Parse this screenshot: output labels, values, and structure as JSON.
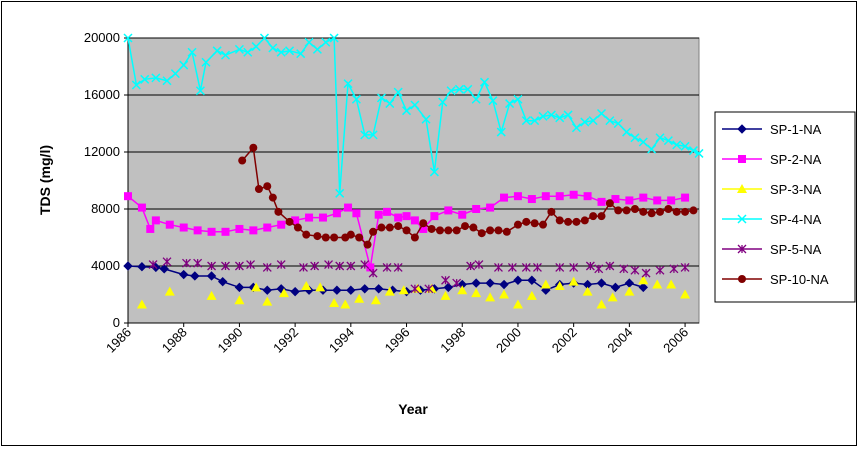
{
  "chart_data": {
    "type": "line",
    "y_label": "TDS (mg/l)",
    "x_label": "Year",
    "xlim": [
      1986,
      2006.5
    ],
    "ylim": [
      0,
      20000
    ],
    "xticks": [
      1986,
      1988,
      1990,
      1992,
      1994,
      1996,
      1998,
      2000,
      2002,
      2004,
      2006
    ],
    "yticks": [
      0,
      4000,
      8000,
      12000,
      16000,
      20000
    ],
    "grid": true,
    "legend": "right",
    "plot_background": "#c0c0c0",
    "series": [
      {
        "name": "SP-1-NA",
        "color": "#000080",
        "marker": "diamond",
        "show_line": true,
        "x": [
          1986,
          1986.5,
          1987,
          1987.3,
          1988,
          1988.4,
          1989,
          1989.4,
          1990,
          1990.5,
          1991,
          1991.5,
          1992,
          1992.5,
          1993,
          1993.5,
          1994,
          1994.5,
          1995,
          1995.5,
          1996,
          1996.5,
          1997,
          1997.5,
          1998,
          1998.5,
          1999,
          1999.5,
          2000,
          2000.5,
          2001,
          2001.5,
          2002,
          2002.5,
          2003,
          2003.5,
          2004,
          2004.5
        ],
        "values": [
          4000,
          3950,
          3900,
          3800,
          3400,
          3300,
          3300,
          2900,
          2500,
          2500,
          2300,
          2400,
          2200,
          2300,
          2300,
          2300,
          2300,
          2400,
          2400,
          2300,
          2200,
          2300,
          2400,
          2500,
          2700,
          2800,
          2800,
          2700,
          3000,
          3000,
          2300,
          2700,
          2800,
          2700,
          2800,
          2500,
          2800,
          2500
        ]
      },
      {
        "name": "SP-2-NA",
        "color": "#ff00ff",
        "marker": "square",
        "show_line": true,
        "x": [
          1986,
          1986.5,
          1986.8,
          1987,
          1987.5,
          1988,
          1988.5,
          1989,
          1989.5,
          1990,
          1990.5,
          1991,
          1991.5,
          1992,
          1992.5,
          1993,
          1993.5,
          1993.9,
          1994.2,
          1994.7,
          1995,
          1995.3,
          1995.7,
          1996,
          1996.3,
          1996.6,
          1997,
          1997.5,
          1998,
          1998.5,
          1999,
          1999.5,
          2000,
          2000.5,
          2001,
          2001.5,
          2002,
          2002.5,
          2003,
          2003.5,
          2004,
          2004.5,
          2005,
          2005.5,
          2006
        ],
        "values": [
          8900,
          8100,
          6600,
          7200,
          6900,
          6700,
          6500,
          6400,
          6400,
          6600,
          6500,
          6700,
          6900,
          7200,
          7400,
          7400,
          7700,
          8100,
          7700,
          3900,
          7600,
          7800,
          7400,
          7500,
          7200,
          6600,
          7500,
          7900,
          7600,
          8000,
          8100,
          8800,
          8900,
          8700,
          8900,
          8900,
          9000,
          8900,
          8500,
          8700,
          8600,
          8800,
          8600,
          8600,
          8800
        ]
      },
      {
        "name": "SP-3-NA",
        "color": "#ffff00",
        "marker": "triangle",
        "show_line": false,
        "x": [
          1986.5,
          1987.5,
          1989,
          1990,
          1990.6,
          1991,
          1991.6,
          1992.4,
          1992.9,
          1993.4,
          1993.8,
          1994.3,
          1994.9,
          1995.4,
          1995.9,
          1996.4,
          1996.9,
          1997.4,
          1998,
          1998.5,
          1999,
          1999.5,
          2000,
          2000.5,
          2001,
          2001.5,
          2002,
          2002.5,
          2003,
          2003.4,
          2004,
          2004.5,
          2005,
          2005.5,
          2006
        ],
        "values": [
          1300,
          2200,
          1900,
          1600,
          2500,
          1500,
          2100,
          2600,
          2500,
          1400,
          1300,
          1700,
          1600,
          2200,
          2300,
          2400,
          2400,
          1900,
          2300,
          2100,
          1800,
          2000,
          1300,
          1900,
          2700,
          2600,
          2900,
          2200,
          1300,
          1800,
          2200,
          3000,
          2700,
          2700,
          2000
        ]
      },
      {
        "name": "SP-4-NA",
        "color": "#00ffff",
        "marker": "x",
        "show_line": true,
        "x": [
          1986,
          1986.3,
          1986.6,
          1987,
          1987.4,
          1987.7,
          1988,
          1988.3,
          1988.6,
          1988.8,
          1989.2,
          1989.5,
          1990,
          1990.3,
          1990.6,
          1990.9,
          1991.2,
          1991.5,
          1991.8,
          1992.2,
          1992.5,
          1992.8,
          1993.1,
          1993.4,
          1993.6,
          1993.9,
          1994.2,
          1994.5,
          1994.8,
          1995.1,
          1995.4,
          1995.7,
          1996,
          1996.3,
          1996.7,
          1997,
          1997.3,
          1997.6,
          1997.9,
          1998.2,
          1998.5,
          1998.8,
          1999.1,
          1999.4,
          1999.7,
          2000,
          2000.3,
          2000.6,
          2000.9,
          2001.2,
          2001.5,
          2001.8,
          2002.1,
          2002.4,
          2002.7,
          2003,
          2003.3,
          2003.6,
          2003.9,
          2004.2,
          2004.5,
          2004.8,
          2005.1,
          2005.4,
          2005.7,
          2006,
          2006.3,
          2006.5
        ],
        "values": [
          20000,
          16700,
          17100,
          17200,
          17000,
          17500,
          18100,
          19000,
          16300,
          18300,
          19100,
          18800,
          19200,
          19000,
          19400,
          20000,
          19300,
          19000,
          19100,
          18900,
          19700,
          19200,
          19700,
          20000,
          9100,
          16800,
          15700,
          13200,
          13200,
          15800,
          15400,
          16200,
          14900,
          15300,
          14300,
          10600,
          15500,
          16300,
          16400,
          16400,
          15700,
          16900,
          15600,
          13400,
          15400,
          15700,
          14200,
          14200,
          14500,
          14600,
          14400,
          14600,
          13700,
          14100,
          14200,
          14700,
          14200,
          14000,
          13400,
          13000,
          12700,
          12200,
          13000,
          12800,
          12500,
          12400,
          12100,
          11900
        ]
      },
      {
        "name": "SP-5-NA",
        "color": "#800080",
        "marker": "asterisk",
        "show_line": false,
        "x": [
          1986.9,
          1987.4,
          1988.1,
          1988.5,
          1989,
          1989.5,
          1990,
          1990.4,
          1991,
          1991.5,
          1992.3,
          1992.7,
          1993.2,
          1993.6,
          1994,
          1994.5,
          1994.8,
          1995.3,
          1995.7,
          1996.3,
          1996.8,
          1997.4,
          1997.8,
          1998.3,
          1998.6,
          1999.3,
          1999.8,
          2000.3,
          2000.7,
          2001.5,
          2002,
          2002.6,
          2002.9,
          2003.3,
          2003.8,
          2004.2,
          2004.6,
          2005.1,
          2005.6,
          2006
        ],
        "values": [
          4100,
          4300,
          4200,
          4200,
          4000,
          4000,
          4000,
          4100,
          3900,
          4100,
          3900,
          4000,
          4100,
          4000,
          4000,
          4100,
          3500,
          3900,
          3900,
          2400,
          2400,
          3000,
          2800,
          4000,
          4100,
          3900,
          3900,
          3900,
          3900,
          3900,
          3900,
          4000,
          3800,
          4000,
          3800,
          3700,
          3500,
          3700,
          3800,
          3900
        ]
      },
      {
        "name": "SP-10-NA",
        "color": "#800000",
        "marker": "circle",
        "show_line": true,
        "x": [
          1990.1,
          1990.5,
          1990.7,
          1991,
          1991.2,
          1991.4,
          1991.8,
          1992.1,
          1992.4,
          1992.8,
          1993.1,
          1993.4,
          1993.8,
          1994,
          1994.3,
          1994.6,
          1994.8,
          1995.1,
          1995.4,
          1995.7,
          1996,
          1996.3,
          1996.6,
          1996.9,
          1997.2,
          1997.5,
          1997.8,
          1998.1,
          1998.4,
          1998.7,
          1999,
          1999.3,
          1999.6,
          2000,
          2000.3,
          2000.6,
          2000.9,
          2001.2,
          2001.5,
          2001.8,
          2002.1,
          2002.4,
          2002.7,
          2003,
          2003.3,
          2003.6,
          2003.9,
          2004.2,
          2004.5,
          2004.8,
          2005.1,
          2005.4,
          2005.7,
          2006,
          2006.3
        ],
        "values": [
          11400,
          12300,
          9400,
          9600,
          8800,
          7800,
          7100,
          6700,
          6200,
          6100,
          6000,
          6000,
          6000,
          6200,
          6000,
          5500,
          6400,
          6700,
          6700,
          6800,
          6500,
          6000,
          7000,
          6600,
          6500,
          6500,
          6500,
          6800,
          6700,
          6300,
          6500,
          6500,
          6400,
          6900,
          7100,
          7000,
          6900,
          7800,
          7200,
          7100,
          7100,
          7200,
          7500,
          7500,
          8400,
          7900,
          7900,
          8000,
          7800,
          7700,
          7800,
          8000,
          7800,
          7800,
          7900
        ]
      }
    ]
  }
}
